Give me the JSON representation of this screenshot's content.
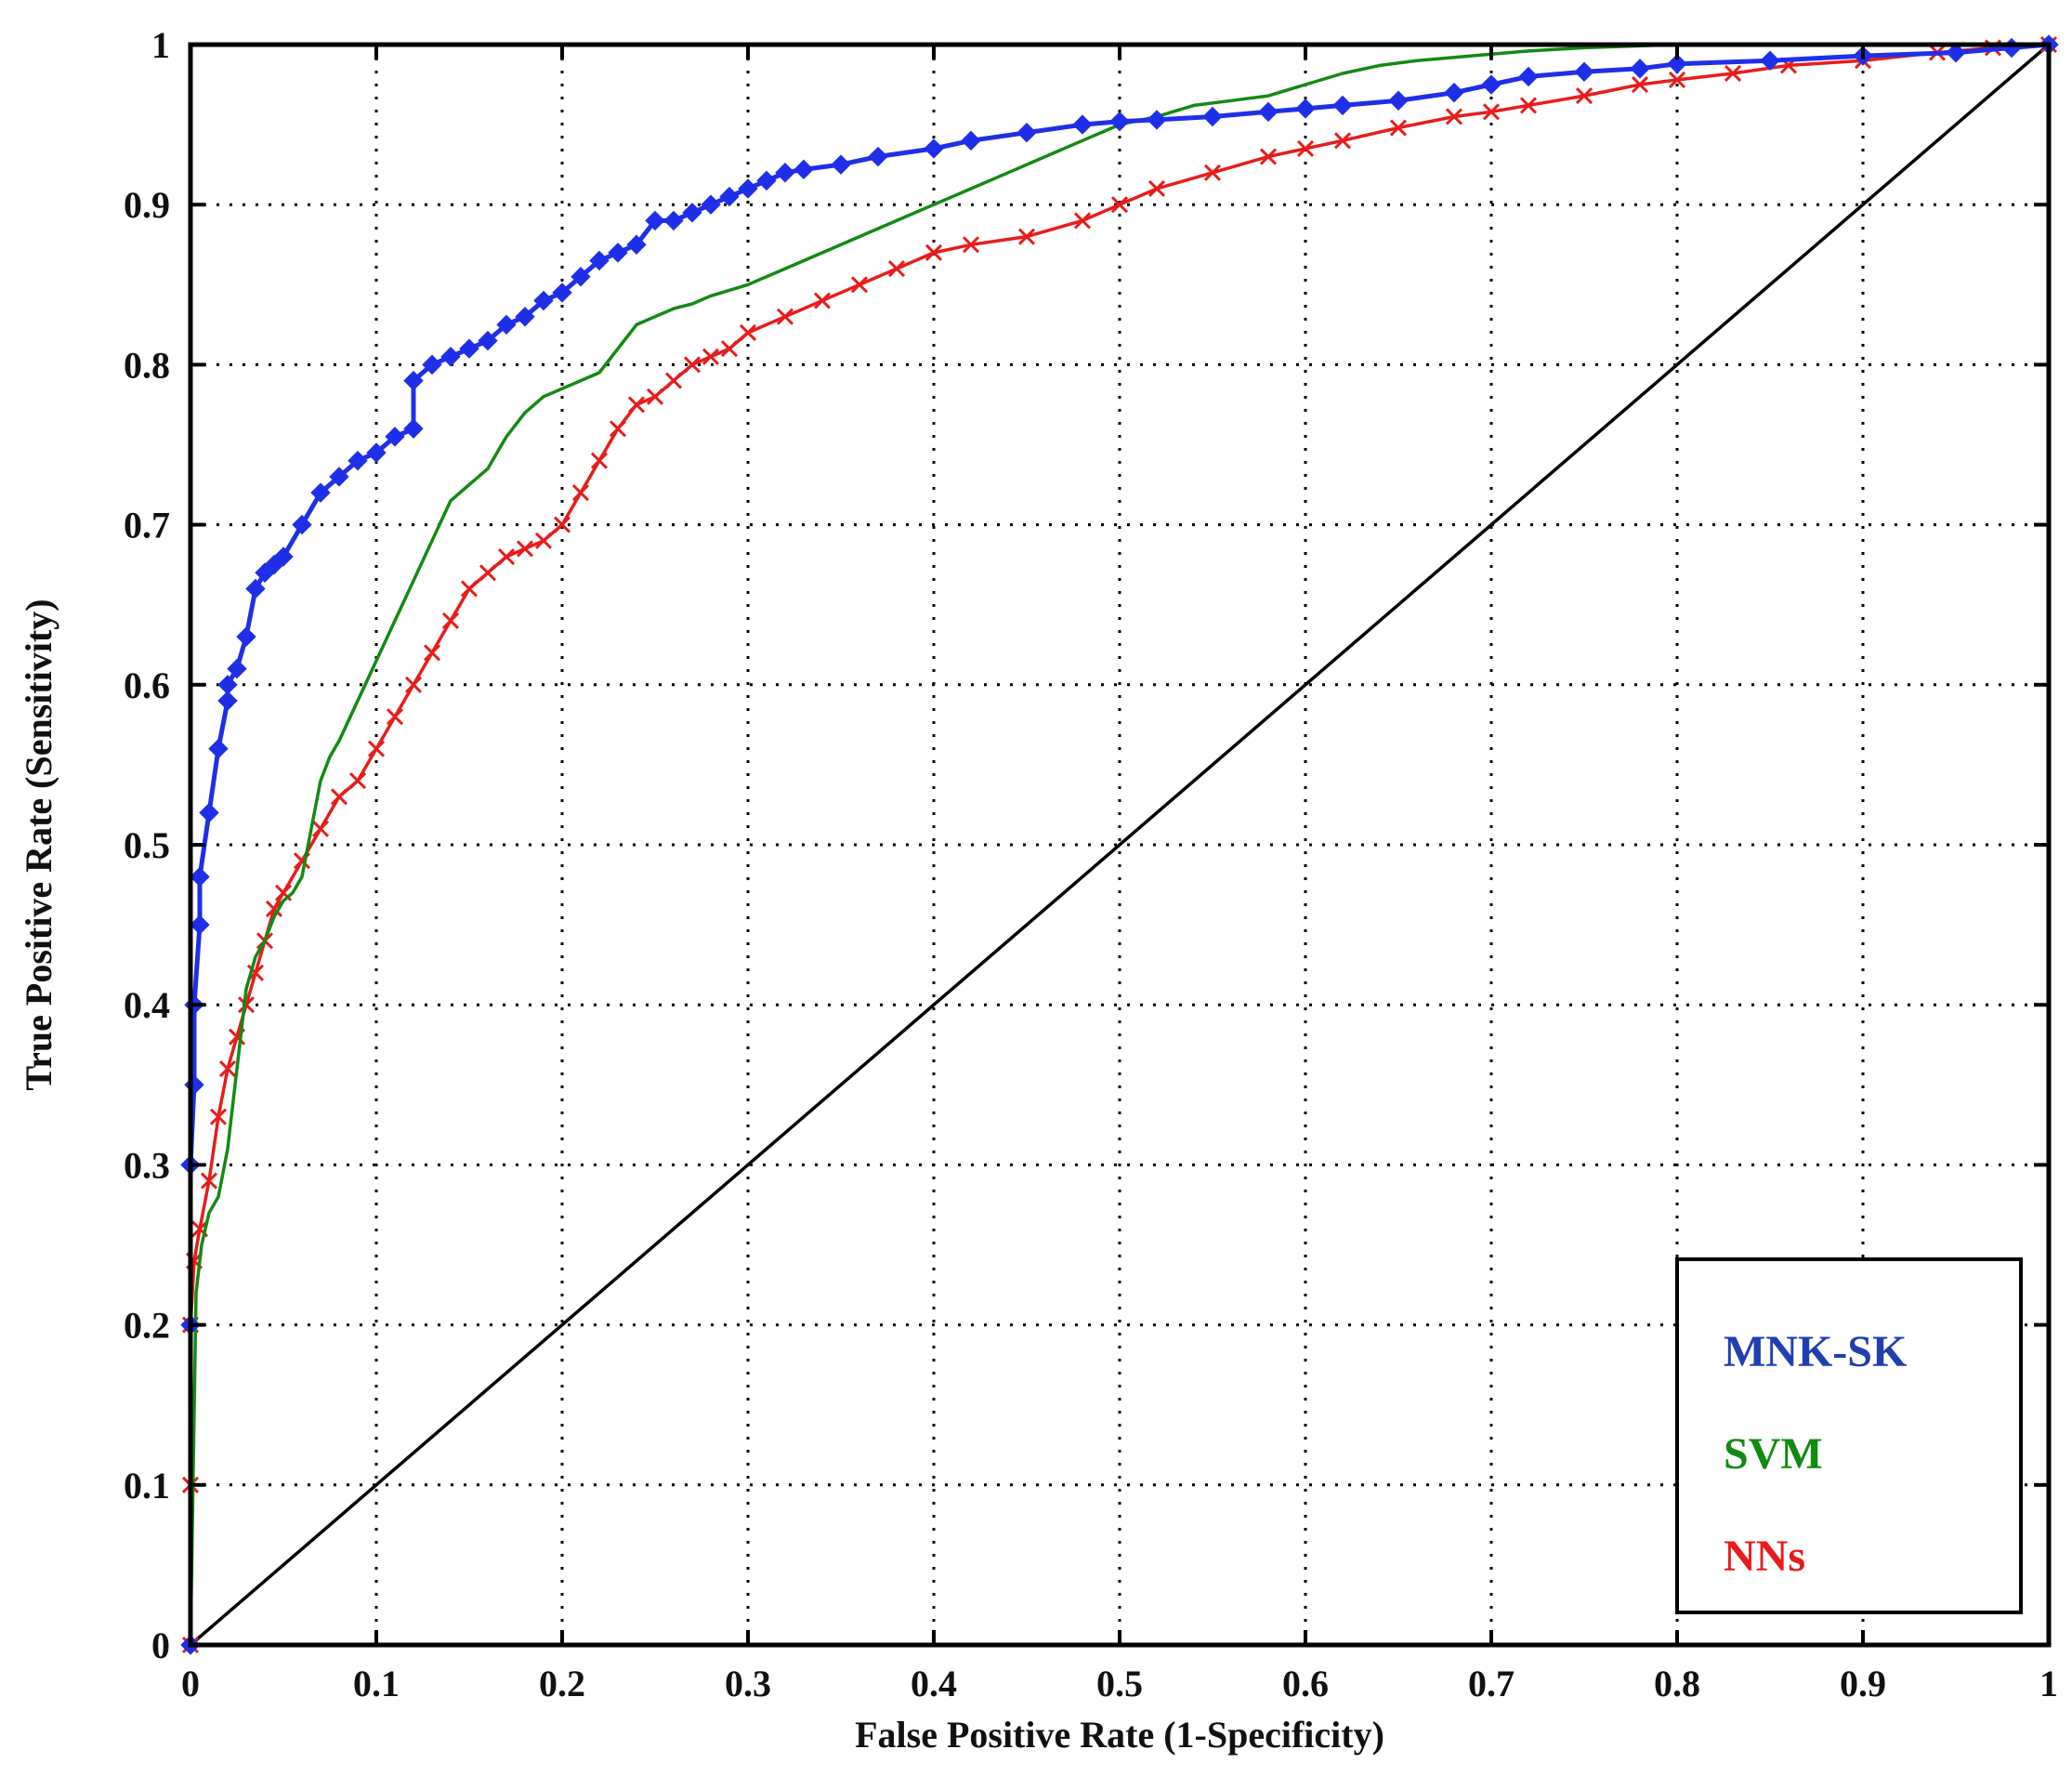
{
  "chart_data": {
    "type": "line",
    "xlabel": "False Positive Rate (1-Specificity)",
    "ylabel": "True Positive Rate (Sensitivity)",
    "xlim": [
      0,
      1
    ],
    "ylim": [
      0,
      1
    ],
    "grid": true,
    "legend_position": "bottom-right",
    "x_ticks": [
      "0",
      "0.1",
      "0.2",
      "0.3",
      "0.4",
      "0.5",
      "0.6",
      "0.7",
      "0.8",
      "0.9",
      "1"
    ],
    "y_ticks": [
      "0",
      "0.1",
      "0.2",
      "0.3",
      "0.4",
      "0.5",
      "0.6",
      "0.7",
      "0.8",
      "0.9",
      "1"
    ],
    "series": [
      {
        "name": "MNK-SK",
        "color": "#1f2fe8",
        "marker": "diamond",
        "x": [
          0,
          0,
          0,
          0.002,
          0.002,
          0.005,
          0.005,
          0.01,
          0.015,
          0.02,
          0.02,
          0.025,
          0.03,
          0.035,
          0.04,
          0.045,
          0.05,
          0.06,
          0.07,
          0.08,
          0.09,
          0.1,
          0.11,
          0.12,
          0.12,
          0.13,
          0.14,
          0.15,
          0.16,
          0.17,
          0.18,
          0.19,
          0.2,
          0.21,
          0.22,
          0.23,
          0.24,
          0.25,
          0.26,
          0.27,
          0.28,
          0.29,
          0.3,
          0.31,
          0.32,
          0.33,
          0.35,
          0.37,
          0.4,
          0.42,
          0.45,
          0.48,
          0.5,
          0.52,
          0.55,
          0.58,
          0.6,
          0.62,
          0.65,
          0.68,
          0.7,
          0.72,
          0.75,
          0.78,
          0.8,
          0.85,
          0.9,
          0.95,
          0.98,
          1
        ],
        "y": [
          0,
          0.2,
          0.3,
          0.35,
          0.4,
          0.45,
          0.48,
          0.52,
          0.56,
          0.59,
          0.6,
          0.61,
          0.63,
          0.66,
          0.67,
          0.675,
          0.68,
          0.7,
          0.72,
          0.73,
          0.74,
          0.745,
          0.755,
          0.76,
          0.79,
          0.8,
          0.805,
          0.81,
          0.815,
          0.825,
          0.83,
          0.84,
          0.845,
          0.855,
          0.865,
          0.87,
          0.875,
          0.89,
          0.89,
          0.895,
          0.9,
          0.905,
          0.91,
          0.915,
          0.92,
          0.922,
          0.925,
          0.93,
          0.935,
          0.94,
          0.945,
          0.95,
          0.952,
          0.953,
          0.955,
          0.958,
          0.96,
          0.962,
          0.965,
          0.97,
          0.975,
          0.98,
          0.983,
          0.985,
          0.988,
          0.99,
          0.993,
          0.995,
          0.998,
          1
        ]
      },
      {
        "name": "SVM",
        "color": "#138a13",
        "marker": "none",
        "x": [
          0,
          0.003,
          0.006,
          0.01,
          0.015,
          0.02,
          0.025,
          0.03,
          0.035,
          0.04,
          0.045,
          0.05,
          0.055,
          0.06,
          0.065,
          0.07,
          0.075,
          0.08,
          0.09,
          0.1,
          0.11,
          0.12,
          0.13,
          0.14,
          0.15,
          0.16,
          0.17,
          0.18,
          0.19,
          0.2,
          0.21,
          0.22,
          0.23,
          0.24,
          0.25,
          0.26,
          0.27,
          0.28,
          0.3,
          0.32,
          0.34,
          0.36,
          0.38,
          0.4,
          0.42,
          0.44,
          0.46,
          0.48,
          0.5,
          0.52,
          0.54,
          0.56,
          0.58,
          0.6,
          0.62,
          0.64,
          0.66,
          0.68,
          0.7,
          0.72,
          0.75,
          0.8,
          0.9,
          1
        ],
        "y": [
          0,
          0.22,
          0.25,
          0.27,
          0.28,
          0.31,
          0.36,
          0.41,
          0.43,
          0.44,
          0.455,
          0.465,
          0.47,
          0.48,
          0.51,
          0.54,
          0.555,
          0.565,
          0.59,
          0.615,
          0.64,
          0.665,
          0.69,
          0.715,
          0.725,
          0.735,
          0.755,
          0.77,
          0.78,
          0.785,
          0.79,
          0.795,
          0.81,
          0.825,
          0.83,
          0.835,
          0.838,
          0.843,
          0.85,
          0.86,
          0.87,
          0.88,
          0.89,
          0.9,
          0.91,
          0.92,
          0.93,
          0.94,
          0.95,
          0.955,
          0.962,
          0.965,
          0.968,
          0.975,
          0.982,
          0.987,
          0.99,
          0.992,
          0.994,
          0.996,
          0.998,
          1,
          1,
          1
        ]
      },
      {
        "name": "NNs",
        "color": "#e81c1c",
        "marker": "x",
        "x": [
          0,
          0,
          0,
          0.002,
          0.005,
          0.01,
          0.015,
          0.02,
          0.025,
          0.03,
          0.035,
          0.04,
          0.045,
          0.05,
          0.06,
          0.07,
          0.08,
          0.09,
          0.1,
          0.11,
          0.12,
          0.13,
          0.14,
          0.15,
          0.16,
          0.17,
          0.18,
          0.19,
          0.2,
          0.21,
          0.22,
          0.23,
          0.24,
          0.25,
          0.26,
          0.27,
          0.28,
          0.29,
          0.3,
          0.32,
          0.34,
          0.36,
          0.38,
          0.4,
          0.42,
          0.45,
          0.48,
          0.5,
          0.52,
          0.55,
          0.58,
          0.6,
          0.62,
          0.65,
          0.68,
          0.7,
          0.72,
          0.75,
          0.78,
          0.8,
          0.83,
          0.86,
          0.9,
          0.94,
          0.97,
          1
        ],
        "y": [
          0,
          0.1,
          0.2,
          0.24,
          0.26,
          0.29,
          0.33,
          0.36,
          0.38,
          0.4,
          0.42,
          0.44,
          0.46,
          0.47,
          0.49,
          0.51,
          0.53,
          0.54,
          0.56,
          0.58,
          0.6,
          0.62,
          0.64,
          0.66,
          0.67,
          0.68,
          0.685,
          0.69,
          0.7,
          0.72,
          0.74,
          0.76,
          0.775,
          0.78,
          0.79,
          0.8,
          0.805,
          0.81,
          0.82,
          0.83,
          0.84,
          0.85,
          0.86,
          0.87,
          0.875,
          0.88,
          0.89,
          0.9,
          0.91,
          0.92,
          0.93,
          0.935,
          0.94,
          0.948,
          0.955,
          0.958,
          0.962,
          0.968,
          0.975,
          0.978,
          0.982,
          0.987,
          0.99,
          0.995,
          0.998,
          1
        ]
      },
      {
        "name": "",
        "color": "#000000",
        "marker": "none",
        "x": [
          0,
          1
        ],
        "y": [
          0,
          1
        ]
      }
    ]
  }
}
